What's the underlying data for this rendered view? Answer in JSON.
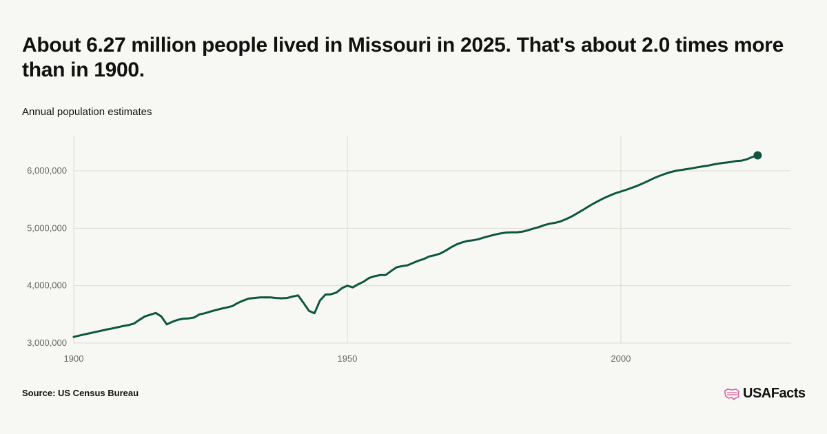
{
  "header": {
    "title": "About 6.27 million people lived in Missouri in 2025. That's about 2.0 times more than in 1900.",
    "subtitle": "Annual population estimates"
  },
  "footer": {
    "source": "Source: US Census Bureau",
    "logo_text": "USAFacts"
  },
  "colors": {
    "line": "#0c5640",
    "grid": "#dcdcd6",
    "logo_accent": "#d9619b"
  },
  "chart_data": {
    "type": "line",
    "xlim": [
      1900,
      2031
    ],
    "ylim": [
      3000000,
      6600000
    ],
    "x_ticks": [
      1900,
      1950,
      2000
    ],
    "x_tick_labels": [
      "1900",
      "1950",
      "2000"
    ],
    "y_ticks": [
      3000000,
      4000000,
      5000000,
      6000000
    ],
    "y_tick_labels": [
      "3,000,000",
      "4,000,000",
      "5,000,000",
      "6,000,000"
    ],
    "grid": true,
    "series": [
      {
        "x": [
          1900,
          1901,
          1902,
          1903,
          1904,
          1905,
          1906,
          1907,
          1908,
          1909,
          1910,
          1911,
          1912,
          1913,
          1914,
          1915,
          1916,
          1917,
          1918,
          1919,
          1920,
          1921,
          1922,
          1923,
          1924,
          1925,
          1926,
          1927,
          1928,
          1929,
          1930,
          1931,
          1932,
          1933,
          1934,
          1935,
          1936,
          1937,
          1938,
          1939,
          1940,
          1941,
          1942,
          1943,
          1944,
          1945,
          1946,
          1947,
          1948,
          1949,
          1950,
          1951,
          1952,
          1953,
          1954,
          1955,
          1956,
          1957,
          1958,
          1959,
          1960,
          1961,
          1962,
          1963,
          1964,
          1965,
          1966,
          1967,
          1968,
          1969,
          1970,
          1971,
          1972,
          1973,
          1974,
          1975,
          1976,
          1977,
          1978,
          1979,
          1980,
          1981,
          1982,
          1983,
          1984,
          1985,
          1986,
          1987,
          1988,
          1989,
          1990,
          1991,
          1992,
          1993,
          1994,
          1995,
          1996,
          1997,
          1998,
          1999,
          2000,
          2001,
          2002,
          2003,
          2004,
          2005,
          2006,
          2007,
          2008,
          2009,
          2010,
          2011,
          2012,
          2013,
          2014,
          2015,
          2016,
          2017,
          2018,
          2019,
          2020,
          2021,
          2022,
          2023,
          2024,
          2025
        ],
        "values": [
          3107000,
          3130000,
          3152000,
          3173000,
          3194000,
          3215000,
          3235000,
          3255000,
          3275000,
          3297000,
          3313000,
          3340000,
          3405000,
          3465000,
          3495000,
          3525000,
          3465000,
          3325000,
          3370000,
          3405000,
          3425000,
          3430000,
          3445000,
          3500000,
          3520000,
          3550000,
          3575000,
          3600000,
          3620000,
          3645000,
          3700000,
          3740000,
          3775000,
          3785000,
          3795000,
          3797000,
          3795000,
          3785000,
          3780000,
          3785000,
          3810000,
          3830000,
          3700000,
          3560000,
          3520000,
          3740000,
          3845000,
          3850000,
          3880000,
          3955000,
          4000000,
          3970000,
          4025000,
          4070000,
          4135000,
          4165000,
          4185000,
          4185000,
          4255000,
          4320000,
          4340000,
          4355000,
          4395000,
          4435000,
          4465000,
          4510000,
          4530000,
          4560000,
          4610000,
          4670000,
          4720000,
          4755000,
          4780000,
          4790000,
          4810000,
          4840000,
          4865000,
          4890000,
          4910000,
          4925000,
          4930000,
          4930000,
          4940000,
          4965000,
          4995000,
          5020000,
          5055000,
          5080000,
          5095000,
          5120000,
          5160000,
          5205000,
          5260000,
          5315000,
          5375000,
          5430000,
          5480000,
          5530000,
          5570000,
          5610000,
          5640000,
          5670000,
          5705000,
          5740000,
          5780000,
          5825000,
          5870000,
          5910000,
          5945000,
          5975000,
          6000000,
          6015000,
          6030000,
          6045000,
          6062000,
          6078000,
          6093000,
          6113000,
          6128000,
          6140000,
          6153000,
          6170000,
          6177000,
          6200000,
          6240000,
          6270000
        ]
      }
    ]
  }
}
